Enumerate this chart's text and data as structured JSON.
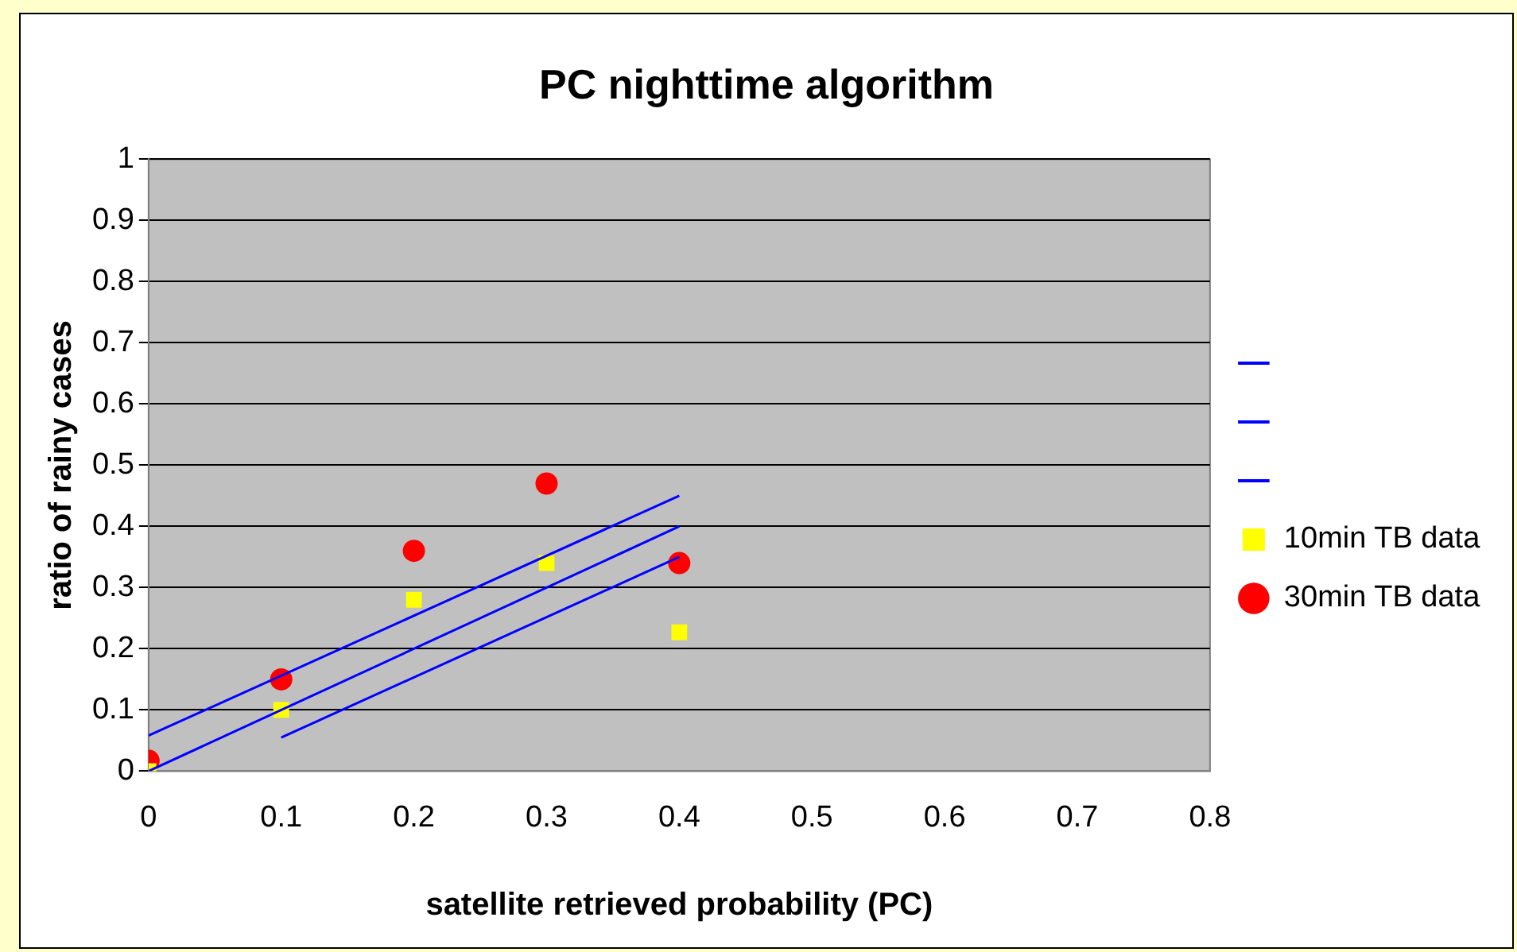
{
  "chart_data": {
    "type": "scatter",
    "title": "PC nighttime algorithm",
    "xlabel": "satellite retrieved probability (PC)",
    "ylabel": "ratio of rainy cases",
    "xlim": [
      0,
      0.8
    ],
    "xticks": [
      0,
      0.1,
      0.2,
      0.3,
      0.4,
      0.5,
      0.6,
      0.7,
      0.8
    ],
    "ylim": [
      0,
      1
    ],
    "yticks": [
      0,
      0.1,
      0.2,
      0.3,
      0.4,
      0.5,
      0.6,
      0.7,
      0.8,
      0.9,
      1
    ],
    "grid": "y",
    "legend": "right",
    "series": [
      {
        "type": "line",
        "color": "#0000ff",
        "marker": "none",
        "x": [
          0,
          0.4
        ],
        "values": [
          0.058,
          0.45
        ]
      },
      {
        "type": "line",
        "color": "#0000ff",
        "marker": "none",
        "x": [
          0,
          0.4
        ],
        "values": [
          0,
          0.4
        ]
      },
      {
        "type": "line",
        "color": "#0000ff",
        "marker": "none",
        "x": [
          0.1,
          0.4
        ],
        "values": [
          0.055,
          0.35
        ]
      },
      {
        "type": "scatter",
        "name": "10min TB data",
        "color": "#ffff00",
        "marker": "square",
        "x": [
          0,
          0.1,
          0.2,
          0.3,
          0.4
        ],
        "values": [
          0,
          0.1,
          0.28,
          0.34,
          0.227
        ]
      },
      {
        "type": "scatter",
        "name": "30min TB data",
        "color": "#ff0000",
        "marker": "circle",
        "x": [
          0,
          0.1,
          0.2,
          0.3,
          0.4
        ],
        "values": [
          0.017,
          0.15,
          0.36,
          0.47,
          0.34
        ]
      }
    ]
  }
}
